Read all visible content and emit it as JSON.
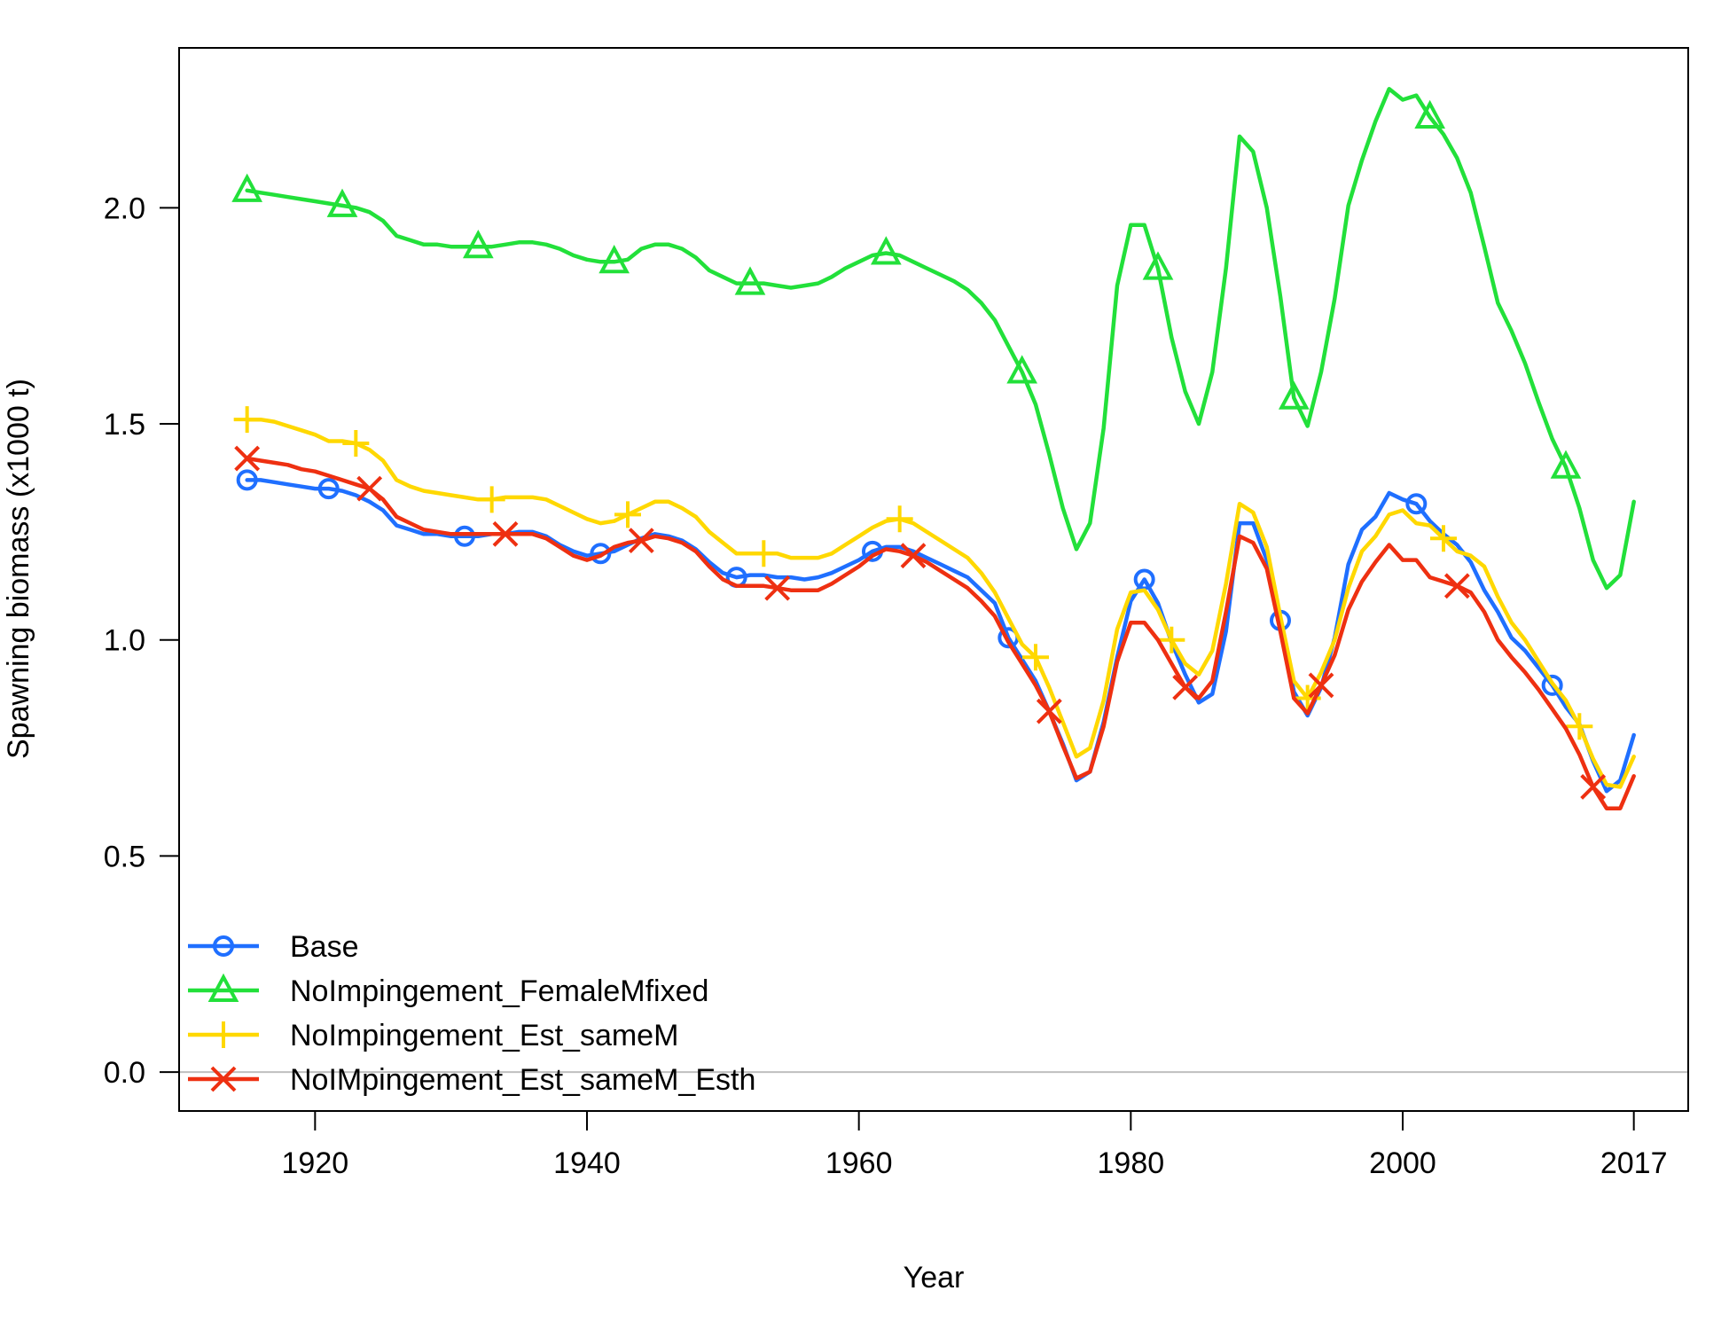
{
  "chart_data": {
    "type": "line",
    "title": "",
    "xlabel": "Year",
    "ylabel": "Spawning biomass (x1000 t)",
    "xlim": [
      1910,
      2021
    ],
    "ylim": [
      -0.09,
      2.37
    ],
    "x_ticks": [
      1920,
      1940,
      1960,
      1980,
      2000,
      2017
    ],
    "x_tick_labels": [
      "1920",
      "1940",
      "1960",
      "1980",
      "2000",
      "2017"
    ],
    "y_ticks": [
      0.0,
      0.5,
      1.0,
      1.5,
      2.0
    ],
    "y_tick_labels": [
      "0.0",
      "0.5",
      "1.0",
      "1.5",
      "2.0"
    ],
    "reference_line": {
      "y": 0.0,
      "color": "#bfbfbf"
    },
    "grid": false,
    "legend_position": "bottom-left",
    "x": [
      1915,
      1916,
      1917,
      1918,
      1919,
      1920,
      1921,
      1922,
      1923,
      1924,
      1925,
      1926,
      1927,
      1928,
      1929,
      1930,
      1931,
      1932,
      1933,
      1934,
      1935,
      1936,
      1937,
      1938,
      1939,
      1940,
      1941,
      1942,
      1943,
      1944,
      1945,
      1946,
      1947,
      1948,
      1949,
      1950,
      1951,
      1952,
      1953,
      1954,
      1955,
      1956,
      1957,
      1958,
      1959,
      1960,
      1961,
      1962,
      1963,
      1964,
      1965,
      1966,
      1967,
      1968,
      1969,
      1970,
      1971,
      1972,
      1973,
      1974,
      1975,
      1976,
      1977,
      1978,
      1979,
      1980,
      1981,
      1982,
      1983,
      1984,
      1985,
      1986,
      1987,
      1988,
      1989,
      1990,
      1991,
      1992,
      1993,
      1994,
      1995,
      1996,
      1997,
      1998,
      1999,
      2000,
      2001,
      2002,
      2003,
      2004,
      2005,
      2006,
      2007,
      2008,
      2009,
      2010,
      2011,
      2012,
      2013,
      2014,
      2015,
      2016,
      2017
    ],
    "series": [
      {
        "name": "Base",
        "color": "#1f6fff",
        "marker": "circle",
        "marker_x": [
          1915,
          1921,
          1931,
          1941,
          1951,
          1961,
          1971,
          1981,
          1991,
          2001,
          2011
        ],
        "values": [
          1.37,
          1.37,
          1.365,
          1.36,
          1.355,
          1.35,
          1.35,
          1.345,
          1.335,
          1.32,
          1.3,
          1.265,
          1.255,
          1.245,
          1.245,
          1.24,
          1.24,
          1.24,
          1.245,
          1.245,
          1.25,
          1.25,
          1.24,
          1.22,
          1.205,
          1.195,
          1.2,
          1.205,
          1.22,
          1.235,
          1.245,
          1.24,
          1.23,
          1.21,
          1.18,
          1.155,
          1.145,
          1.15,
          1.15,
          1.145,
          1.145,
          1.14,
          1.145,
          1.155,
          1.17,
          1.185,
          1.205,
          1.215,
          1.215,
          1.205,
          1.19,
          1.175,
          1.16,
          1.145,
          1.115,
          1.085,
          1.005,
          0.955,
          0.905,
          0.835,
          0.76,
          0.675,
          0.695,
          0.81,
          0.96,
          1.09,
          1.14,
          1.085,
          0.995,
          0.92,
          0.855,
          0.875,
          1.02,
          1.27,
          1.27,
          1.185,
          1.045,
          0.88,
          0.825,
          0.89,
          1.005,
          1.175,
          1.255,
          1.285,
          1.34,
          1.325,
          1.315,
          1.275,
          1.245,
          1.22,
          1.18,
          1.115,
          1.065,
          1.005,
          0.975,
          0.935,
          0.895,
          0.845,
          0.805,
          0.72,
          0.65,
          0.675,
          0.78
        ]
      },
      {
        "name": "NoImpingement_FemaleMfixed",
        "color": "#22e03a",
        "marker": "triangle",
        "marker_x": [
          1915,
          1922,
          1932,
          1942,
          1952,
          1962,
          1972,
          1982,
          1992,
          2002,
          2012
        ],
        "values": [
          2.04,
          2.035,
          2.03,
          2.025,
          2.02,
          2.015,
          2.01,
          2.005,
          2.0,
          1.99,
          1.97,
          1.935,
          1.925,
          1.915,
          1.915,
          1.91,
          1.91,
          1.91,
          1.91,
          1.915,
          1.92,
          1.92,
          1.915,
          1.905,
          1.89,
          1.88,
          1.875,
          1.875,
          1.88,
          1.905,
          1.915,
          1.915,
          1.905,
          1.885,
          1.855,
          1.84,
          1.825,
          1.825,
          1.825,
          1.82,
          1.815,
          1.82,
          1.825,
          1.84,
          1.86,
          1.875,
          1.89,
          1.895,
          1.89,
          1.875,
          1.86,
          1.845,
          1.83,
          1.81,
          1.78,
          1.74,
          1.68,
          1.62,
          1.545,
          1.43,
          1.305,
          1.21,
          1.27,
          1.49,
          1.82,
          1.96,
          1.96,
          1.86,
          1.7,
          1.575,
          1.5,
          1.62,
          1.86,
          2.165,
          2.13,
          2.0,
          1.795,
          1.56,
          1.495,
          1.62,
          1.79,
          2.005,
          2.11,
          2.2,
          2.275,
          2.25,
          2.26,
          2.21,
          2.17,
          2.115,
          2.035,
          1.91,
          1.78,
          1.715,
          1.64,
          1.55,
          1.465,
          1.4,
          1.305,
          1.185,
          1.12,
          1.15,
          1.32
        ]
      },
      {
        "name": "NoImpingement_Est_sameM",
        "color": "#ffd800",
        "marker": "plus",
        "marker_x": [
          1915,
          1923,
          1933,
          1943,
          1953,
          1963,
          1973,
          1983,
          1993,
          2003,
          2013
        ],
        "values": [
          1.51,
          1.51,
          1.505,
          1.495,
          1.485,
          1.475,
          1.46,
          1.46,
          1.455,
          1.44,
          1.415,
          1.37,
          1.355,
          1.345,
          1.34,
          1.335,
          1.33,
          1.325,
          1.325,
          1.33,
          1.33,
          1.33,
          1.325,
          1.31,
          1.295,
          1.28,
          1.27,
          1.275,
          1.29,
          1.305,
          1.32,
          1.32,
          1.305,
          1.285,
          1.25,
          1.225,
          1.2,
          1.2,
          1.2,
          1.2,
          1.19,
          1.19,
          1.19,
          1.2,
          1.22,
          1.24,
          1.26,
          1.275,
          1.28,
          1.27,
          1.25,
          1.23,
          1.21,
          1.19,
          1.155,
          1.11,
          1.05,
          0.99,
          0.96,
          0.89,
          0.81,
          0.73,
          0.75,
          0.86,
          1.025,
          1.11,
          1.115,
          1.07,
          1.0,
          0.945,
          0.92,
          0.975,
          1.13,
          1.315,
          1.295,
          1.215,
          1.055,
          0.905,
          0.865,
          0.925,
          1.0,
          1.12,
          1.205,
          1.24,
          1.29,
          1.3,
          1.27,
          1.265,
          1.235,
          1.205,
          1.195,
          1.17,
          1.1,
          1.04,
          1.0,
          0.95,
          0.9,
          0.86,
          0.8,
          0.725,
          0.665,
          0.66,
          0.73
        ]
      },
      {
        "name": "NoIMpingement_Est_sameM_Esth",
        "color": "#ee3011",
        "marker": "x",
        "marker_x": [
          1915,
          1924,
          1934,
          1944,
          1954,
          1964,
          1974,
          1984,
          1994,
          2004,
          2014
        ],
        "values": [
          1.42,
          1.415,
          1.41,
          1.405,
          1.395,
          1.39,
          1.38,
          1.37,
          1.36,
          1.35,
          1.325,
          1.285,
          1.27,
          1.255,
          1.25,
          1.245,
          1.245,
          1.245,
          1.245,
          1.245,
          1.245,
          1.245,
          1.235,
          1.215,
          1.195,
          1.185,
          1.195,
          1.215,
          1.225,
          1.23,
          1.24,
          1.235,
          1.225,
          1.205,
          1.17,
          1.14,
          1.125,
          1.125,
          1.125,
          1.12,
          1.115,
          1.115,
          1.115,
          1.13,
          1.15,
          1.17,
          1.195,
          1.21,
          1.205,
          1.195,
          1.18,
          1.16,
          1.14,
          1.12,
          1.09,
          1.055,
          0.995,
          0.945,
          0.895,
          0.835,
          0.755,
          0.68,
          0.695,
          0.8,
          0.95,
          1.04,
          1.04,
          1.0,
          0.945,
          0.89,
          0.865,
          0.905,
          1.065,
          1.24,
          1.225,
          1.165,
          1.02,
          0.865,
          0.83,
          0.895,
          0.965,
          1.07,
          1.135,
          1.18,
          1.22,
          1.185,
          1.185,
          1.145,
          1.135,
          1.125,
          1.11,
          1.065,
          1.0,
          0.96,
          0.925,
          0.885,
          0.84,
          0.795,
          0.735,
          0.66,
          0.61,
          0.61,
          0.685
        ]
      }
    ]
  }
}
